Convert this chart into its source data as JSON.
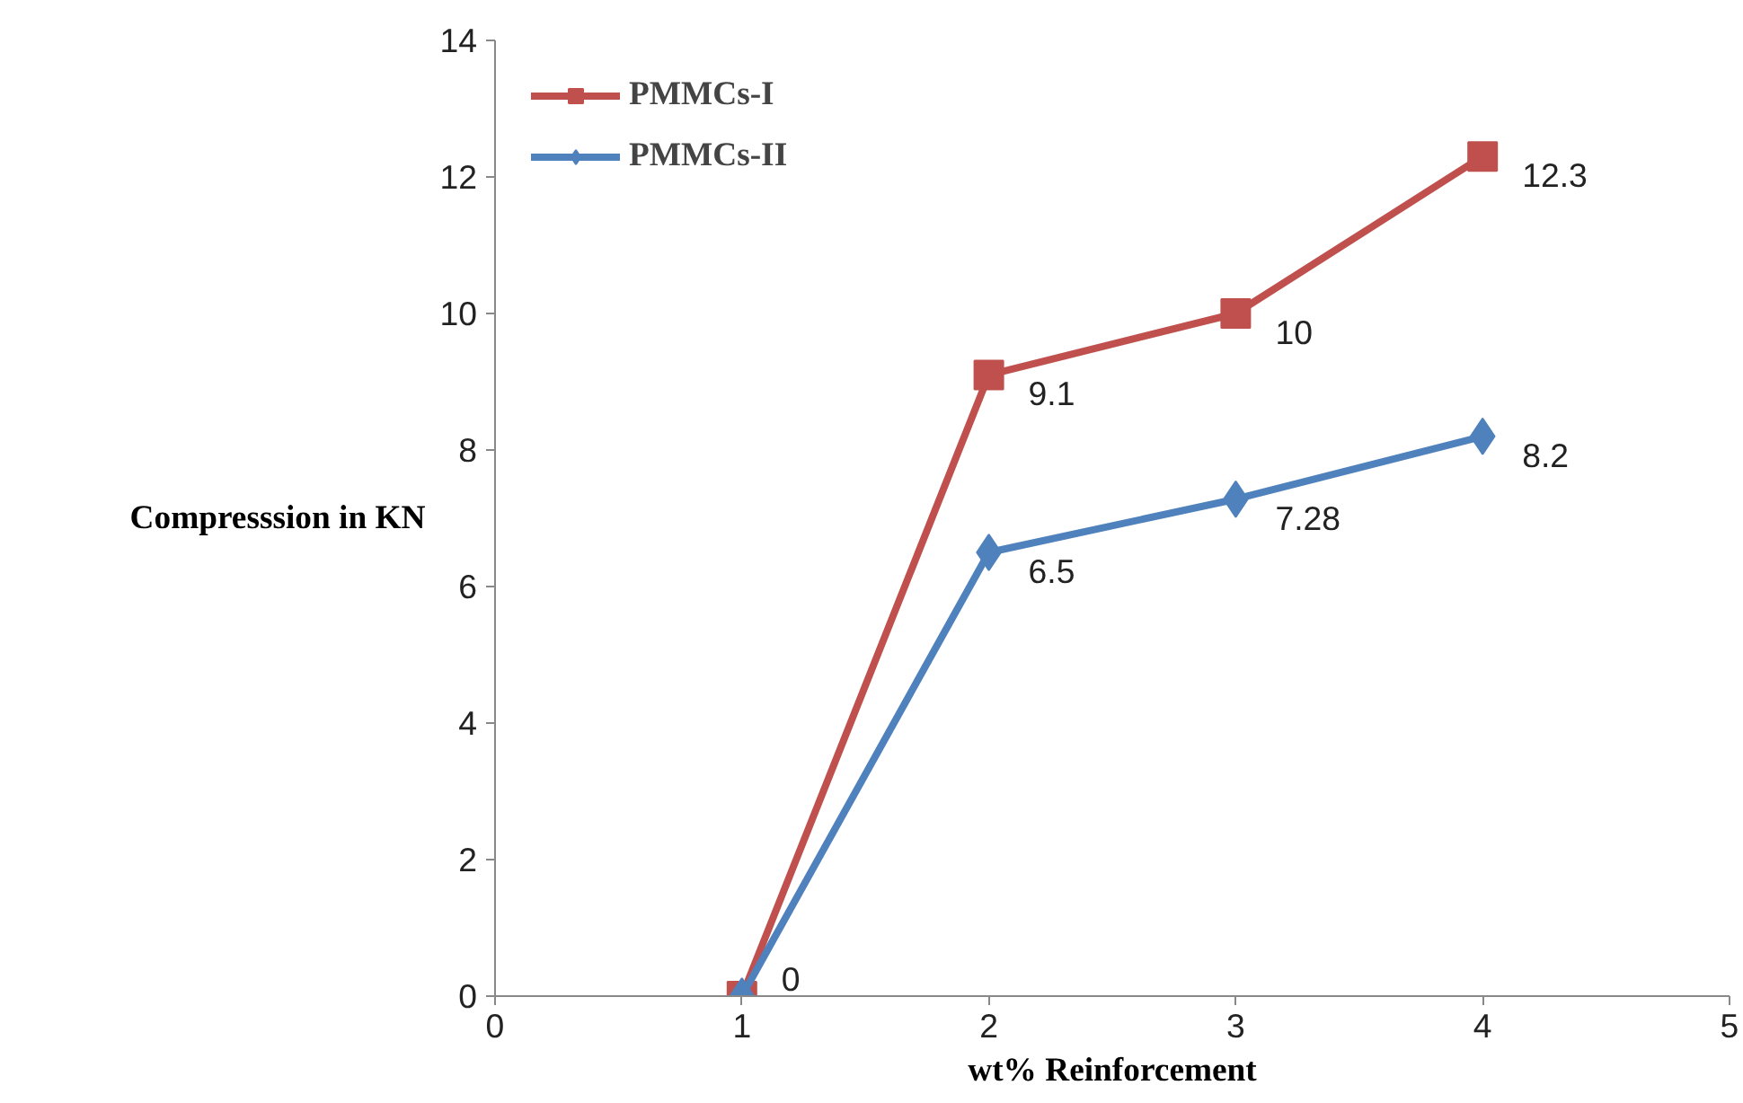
{
  "chart_data": {
    "type": "line",
    "xlabel": "wt% Reinforcement",
    "ylabel": "Compresssion in KN",
    "x": [
      1,
      2,
      3,
      4
    ],
    "xlim": [
      0,
      5
    ],
    "xticks": [
      0,
      1,
      2,
      3,
      4,
      5
    ],
    "ylim": [
      0,
      14
    ],
    "yticks": [
      0,
      2,
      4,
      6,
      8,
      10,
      12,
      14
    ],
    "grid": false,
    "legend": "top left",
    "line_style": "solid",
    "series": [
      {
        "name": "PMMCs-I",
        "color": "#c0504d",
        "marker": "square",
        "values": [
          0,
          9.1,
          10,
          12.3
        ],
        "value_labels": [
          null,
          "9.1",
          "10",
          "12.3"
        ]
      },
      {
        "name": "PMMCs-II",
        "color": "#4f81bd",
        "marker": "diamond",
        "values": [
          0,
          6.5,
          7.28,
          8.2
        ],
        "value_labels": [
          "0",
          "6.5",
          "7.28",
          "8.2"
        ]
      }
    ]
  }
}
